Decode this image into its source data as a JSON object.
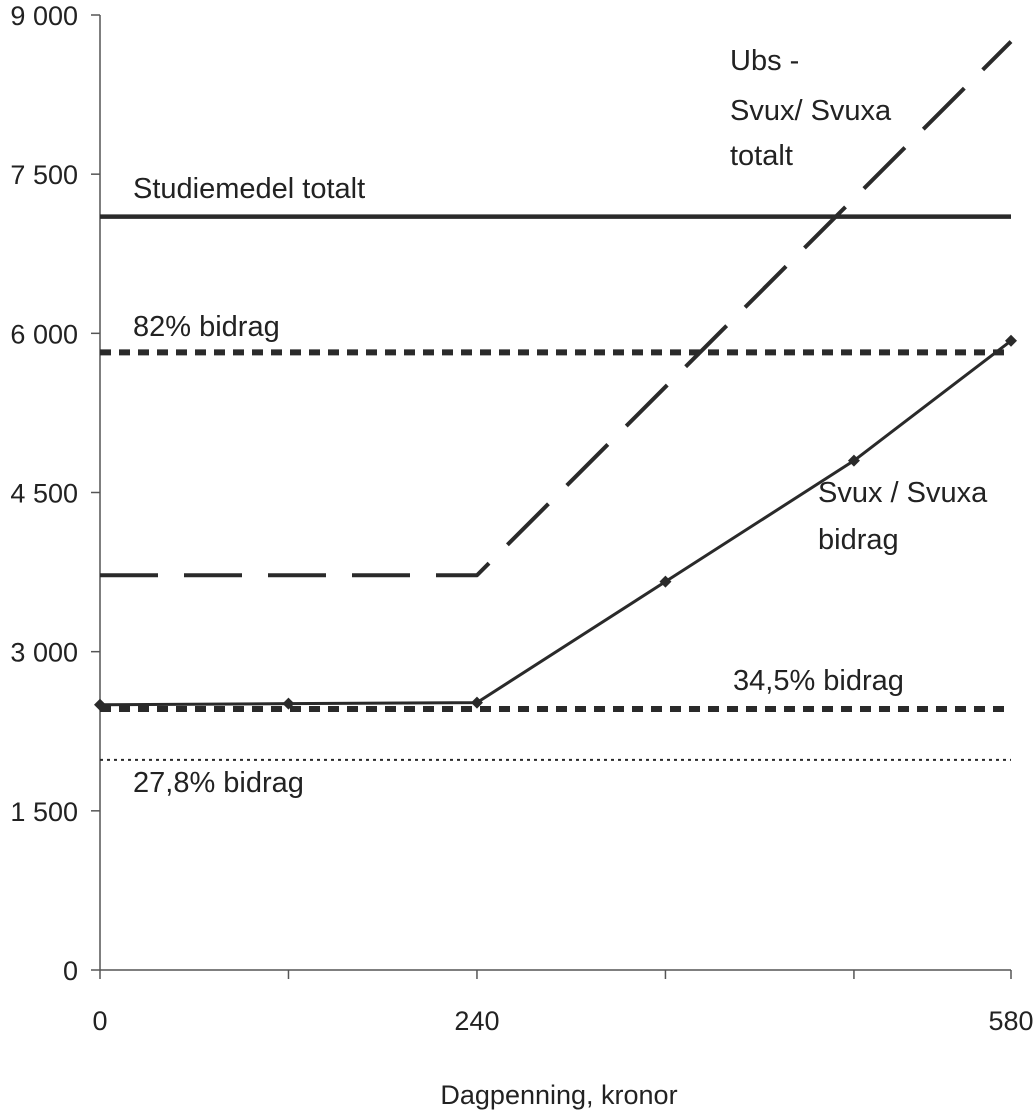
{
  "chart_data": {
    "type": "line",
    "title": "",
    "xlabel": "Dagpenning, kronor",
    "ylabel": "",
    "xlim": [
      0,
      580
    ],
    "ylim": [
      0,
      9000
    ],
    "x_tick_labels": [
      "0",
      "240",
      "580"
    ],
    "x_tick_values": [
      0,
      240,
      580
    ],
    "x_minor_ticks": [
      120,
      360,
      480
    ],
    "y_tick_labels": [
      "0",
      "1 500",
      "3 000",
      "4 500",
      "6 000",
      "7 500",
      "9 000"
    ],
    "y_tick_values": [
      0,
      1500,
      3000,
      4500,
      6000,
      7500,
      9000
    ],
    "grid": false,
    "legend": "none (series labelled directly on chart)",
    "series": [
      {
        "name": "Studiemedel totalt",
        "style": "solid-thick",
        "x": [
          0,
          580
        ],
        "values": [
          7100,
          7100
        ]
      },
      {
        "name": "82% bidrag",
        "style": "dotted-thick",
        "x": [
          0,
          580
        ],
        "values": [
          5820,
          5820
        ]
      },
      {
        "name": "Ubs - Svux/ Svuxa totalt",
        "style": "dashed",
        "x": [
          0,
          240,
          580
        ],
        "values": [
          3720,
          3720,
          8750
        ]
      },
      {
        "name": "Svux / Svuxa bidrag",
        "style": "solid-markers",
        "x": [
          0,
          120,
          240,
          360,
          480,
          580
        ],
        "values": [
          2500,
          2510,
          2520,
          3660,
          4800,
          5930
        ]
      },
      {
        "name": "34,5% bidrag",
        "style": "dotted-thick",
        "x": [
          0,
          580
        ],
        "values": [
          2460,
          2460
        ]
      },
      {
        "name": "27,8% bidrag",
        "style": "dotted-thin",
        "x": [
          0,
          580
        ],
        "values": [
          1980,
          1980
        ]
      }
    ],
    "annotations": {
      "studiemedel": "Studiemedel totalt",
      "bidrag82": "82% bidrag",
      "ubs_line1": "Ubs -",
      "ubs_line2": "Svux/ Svuxa",
      "ubs_line3": "totalt",
      "svux_line1": "Svux / Svuxa",
      "svux_line2": "bidrag",
      "bidrag345": "34,5% bidrag",
      "bidrag278": "27,8% bidrag"
    },
    "colors": {
      "line": "#2a2a2a",
      "text": "#222222"
    }
  }
}
